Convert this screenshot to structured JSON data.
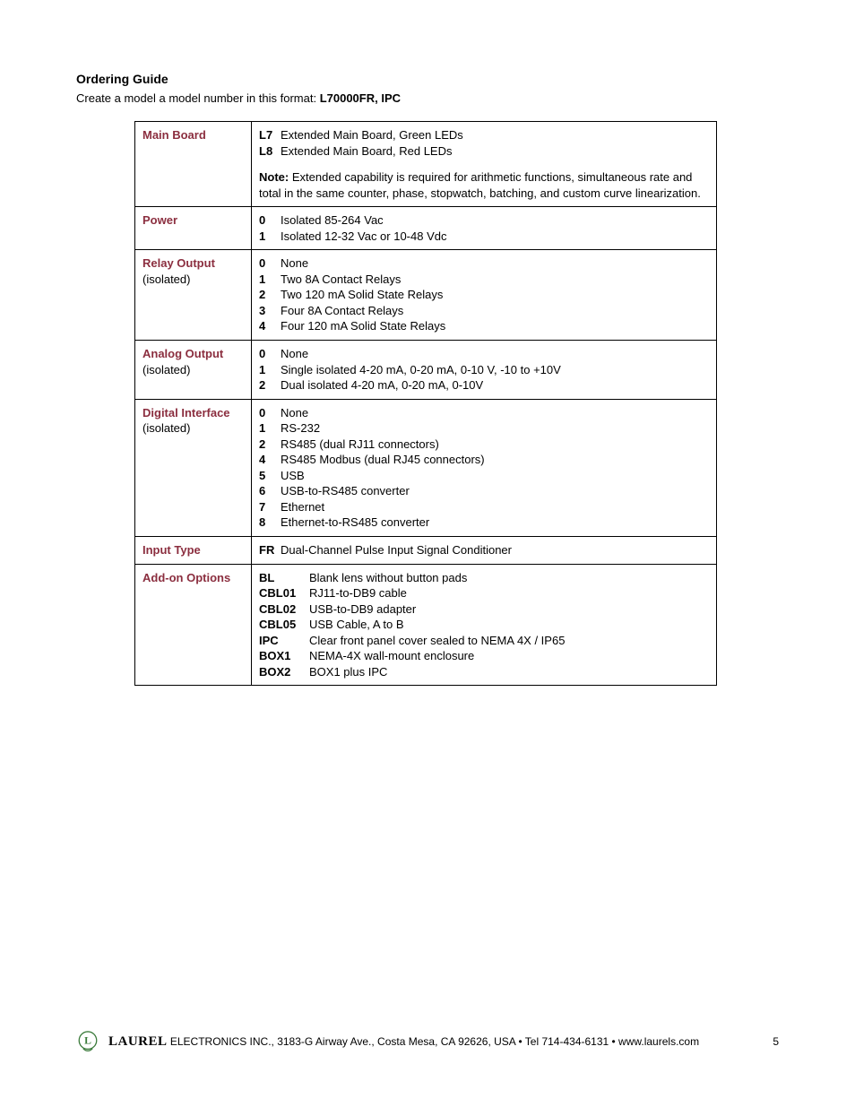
{
  "title": "Ordering Guide",
  "subtitle_prefix": "Create a model a model number in this format: ",
  "subtitle_bold": "L70000FR, IPC",
  "rows": [
    {
      "label": "Main Board",
      "sublabel": "",
      "options": [
        {
          "code": "L7",
          "desc": "Extended Main Board, Green LEDs"
        },
        {
          "code": "L8",
          "desc": "Extended Main Board, Red LEDs"
        }
      ],
      "note_label": "Note: ",
      "note_text": "Extended capability is required for arithmetic functions, simultaneous rate and total in the same counter, phase, stopwatch, batching, and custom curve linearization."
    },
    {
      "label": "Power",
      "sublabel": "",
      "options": [
        {
          "code": "0",
          "desc": "Isolated 85-264 Vac"
        },
        {
          "code": "1",
          "desc": "Isolated 12-32 Vac or 10-48 Vdc"
        }
      ]
    },
    {
      "label": "Relay Output",
      "sublabel": "(isolated)",
      "options": [
        {
          "code": "0",
          "desc": "None"
        },
        {
          "code": "1",
          "desc": "Two 8A Contact Relays"
        },
        {
          "code": "2",
          "desc": "Two 120 mA Solid State Relays"
        },
        {
          "code": "3",
          "desc": "Four 8A Contact Relays"
        },
        {
          "code": "4",
          "desc": "Four 120 mA Solid State Relays"
        }
      ]
    },
    {
      "label": "Analog Output",
      "sublabel": "(isolated)",
      "options": [
        {
          "code": "0",
          "desc": "None"
        },
        {
          "code": "1",
          "desc": "Single isolated 4-20 mA, 0-20 mA, 0-10 V, -10 to +10V"
        },
        {
          "code": "2",
          "desc": "Dual isolated 4-20 mA, 0-20 mA, 0-10V"
        }
      ]
    },
    {
      "label": "Digital Interface",
      "sublabel": "(isolated)",
      "options": [
        {
          "code": "0",
          "desc": "None"
        },
        {
          "code": "1",
          "desc": "RS-232"
        },
        {
          "code": "2",
          "desc": "RS485 (dual RJ11 connectors)"
        },
        {
          "code": "4",
          "desc": "RS485 Modbus (dual RJ45 connectors)"
        },
        {
          "code": "5",
          "desc": "USB"
        },
        {
          "code": "6",
          "desc": "USB-to-RS485 converter"
        },
        {
          "code": "7",
          "desc": "Ethernet"
        },
        {
          "code": "8",
          "desc": "Ethernet-to-RS485 converter"
        }
      ]
    },
    {
      "label": "Input Type",
      "sublabel": "",
      "options": [
        {
          "code": "FR",
          "desc": "Dual-Channel Pulse Input Signal Conditioner"
        }
      ]
    },
    {
      "label": "Add-on Options",
      "sublabel": "",
      "wide_codes": true,
      "options": [
        {
          "code": "BL",
          "desc": "Blank lens without button pads"
        },
        {
          "code": "CBL01",
          "desc": "RJ11-to-DB9 cable"
        },
        {
          "code": "CBL02",
          "desc": "USB-to-DB9 adapter"
        },
        {
          "code": "CBL05",
          "desc": "USB Cable, A to B"
        },
        {
          "code": "IPC",
          "desc": "Clear front panel cover sealed to NEMA 4X / IP65"
        },
        {
          "code": "BOX1",
          "desc": "NEMA-4X wall-mount enclosure"
        },
        {
          "code": "BOX2",
          "desc": "BOX1 plus IPC"
        }
      ]
    }
  ],
  "footer": {
    "brand": "LAUREL",
    "rest": " ELECTRONICS INC., 3183-G Airway Ave., Costa Mesa, CA 92626, USA • Tel 714-434-6131 • www.laurels.com",
    "page": "5"
  },
  "colors": {
    "label_color": "#8b2e3f"
  }
}
